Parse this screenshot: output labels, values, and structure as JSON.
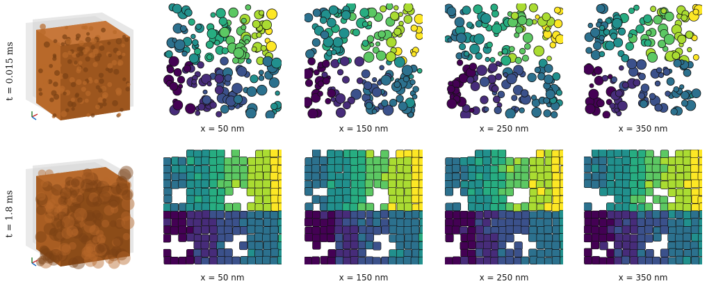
{
  "rows": [
    {
      "time_label": "t = 0.015 ms",
      "stage": "particles",
      "captions": [
        "x = 50 nm",
        "x = 150 nm",
        "x = 250 nm",
        "x = 350 nm"
      ]
    },
    {
      "time_label": "t = 1.8 ms",
      "stage": "sintered",
      "captions": [
        "x = 50 nm",
        "x = 150 nm",
        "x = 250 nm",
        "x = 350 nm"
      ]
    }
  ],
  "colors": {
    "cube_fill": "#b8692a",
    "cube_shadow": "#7a4114",
    "viridis": [
      "#440154",
      "#472c7a",
      "#3b518b",
      "#2c718e",
      "#21908d",
      "#27ad81",
      "#5cc863",
      "#aadc32",
      "#fde725"
    ]
  },
  "icons": {
    "axis_triad": "xyz-axes-icon"
  }
}
